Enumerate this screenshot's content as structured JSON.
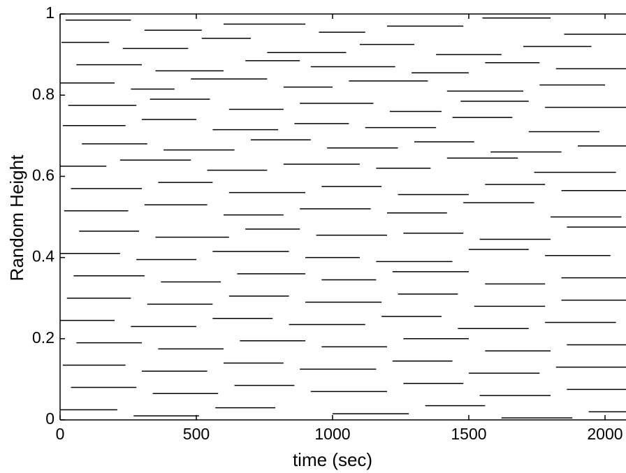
{
  "chart_data": {
    "type": "segments",
    "x_label": "time (sec)",
    "y_label": "Random Height",
    "xlim": [
      0,
      2077
    ],
    "ylim": [
      0,
      1
    ],
    "xticks": [
      0,
      500,
      1000,
      1500,
      2000
    ],
    "yticks": [
      0,
      0.2,
      0.4,
      0.6,
      0.8,
      1
    ],
    "color": "#000000",
    "segments": [
      [
        20,
        260,
        0.985
      ],
      [
        310,
        520,
        0.96
      ],
      [
        600,
        900,
        0.975
      ],
      [
        950,
        1120,
        0.955
      ],
      [
        1200,
        1480,
        0.97
      ],
      [
        1550,
        1800,
        0.99
      ],
      [
        1850,
        2077,
        0.95
      ],
      [
        5,
        180,
        0.93
      ],
      [
        230,
        470,
        0.915
      ],
      [
        520,
        700,
        0.94
      ],
      [
        760,
        1050,
        0.905
      ],
      [
        1100,
        1300,
        0.925
      ],
      [
        1380,
        1620,
        0.9
      ],
      [
        1700,
        1950,
        0.92
      ],
      [
        60,
        300,
        0.875
      ],
      [
        350,
        600,
        0.86
      ],
      [
        680,
        880,
        0.885
      ],
      [
        920,
        1230,
        0.87
      ],
      [
        1290,
        1500,
        0.855
      ],
      [
        1560,
        1760,
        0.88
      ],
      [
        1820,
        2077,
        0.865
      ],
      [
        0,
        200,
        0.83
      ],
      [
        260,
        420,
        0.815
      ],
      [
        480,
        760,
        0.84
      ],
      [
        820,
        1000,
        0.82
      ],
      [
        1060,
        1350,
        0.835
      ],
      [
        1420,
        1700,
        0.81
      ],
      [
        1760,
        2000,
        0.825
      ],
      [
        30,
        280,
        0.775
      ],
      [
        330,
        550,
        0.79
      ],
      [
        620,
        820,
        0.765
      ],
      [
        880,
        1150,
        0.78
      ],
      [
        1210,
        1400,
        0.76
      ],
      [
        1470,
        1720,
        0.785
      ],
      [
        1780,
        2077,
        0.77
      ],
      [
        10,
        240,
        0.725
      ],
      [
        300,
        500,
        0.74
      ],
      [
        560,
        800,
        0.715
      ],
      [
        860,
        1060,
        0.73
      ],
      [
        1120,
        1380,
        0.72
      ],
      [
        1440,
        1660,
        0.745
      ],
      [
        1720,
        1980,
        0.71
      ],
      [
        80,
        320,
        0.68
      ],
      [
        380,
        640,
        0.665
      ],
      [
        700,
        920,
        0.69
      ],
      [
        980,
        1240,
        0.67
      ],
      [
        1300,
        1520,
        0.685
      ],
      [
        1580,
        1840,
        0.66
      ],
      [
        1900,
        2077,
        0.675
      ],
      [
        0,
        170,
        0.625
      ],
      [
        220,
        480,
        0.64
      ],
      [
        540,
        760,
        0.615
      ],
      [
        820,
        1100,
        0.63
      ],
      [
        1160,
        1360,
        0.62
      ],
      [
        1420,
        1680,
        0.645
      ],
      [
        1740,
        2040,
        0.61
      ],
      [
        40,
        300,
        0.57
      ],
      [
        360,
        560,
        0.585
      ],
      [
        620,
        900,
        0.56
      ],
      [
        960,
        1180,
        0.575
      ],
      [
        1240,
        1500,
        0.555
      ],
      [
        1560,
        1780,
        0.58
      ],
      [
        1840,
        2077,
        0.565
      ],
      [
        15,
        250,
        0.515
      ],
      [
        310,
        540,
        0.53
      ],
      [
        600,
        820,
        0.505
      ],
      [
        880,
        1140,
        0.52
      ],
      [
        1200,
        1420,
        0.51
      ],
      [
        1480,
        1740,
        0.535
      ],
      [
        1800,
        2060,
        0.5
      ],
      [
        70,
        290,
        0.465
      ],
      [
        350,
        620,
        0.45
      ],
      [
        680,
        880,
        0.47
      ],
      [
        940,
        1200,
        0.455
      ],
      [
        1260,
        1480,
        0.46
      ],
      [
        1540,
        1800,
        0.445
      ],
      [
        1860,
        2077,
        0.475
      ],
      [
        0,
        220,
        0.41
      ],
      [
        280,
        500,
        0.395
      ],
      [
        560,
        840,
        0.415
      ],
      [
        900,
        1100,
        0.4
      ],
      [
        1160,
        1440,
        0.39
      ],
      [
        1500,
        1720,
        0.42
      ],
      [
        1780,
        2020,
        0.405
      ],
      [
        50,
        310,
        0.355
      ],
      [
        370,
        590,
        0.34
      ],
      [
        650,
        900,
        0.36
      ],
      [
        960,
        1160,
        0.345
      ],
      [
        1220,
        1500,
        0.365
      ],
      [
        1560,
        1780,
        0.335
      ],
      [
        1840,
        2077,
        0.35
      ],
      [
        25,
        260,
        0.3
      ],
      [
        320,
        560,
        0.285
      ],
      [
        620,
        840,
        0.305
      ],
      [
        900,
        1180,
        0.29
      ],
      [
        1240,
        1460,
        0.31
      ],
      [
        1520,
        1780,
        0.28
      ],
      [
        1840,
        2077,
        0.295
      ],
      [
        0,
        200,
        0.245
      ],
      [
        260,
        500,
        0.23
      ],
      [
        560,
        780,
        0.25
      ],
      [
        840,
        1120,
        0.235
      ],
      [
        1180,
        1400,
        0.255
      ],
      [
        1460,
        1720,
        0.225
      ],
      [
        1780,
        2040,
        0.24
      ],
      [
        60,
        300,
        0.19
      ],
      [
        360,
        600,
        0.175
      ],
      [
        660,
        900,
        0.195
      ],
      [
        960,
        1200,
        0.18
      ],
      [
        1260,
        1500,
        0.2
      ],
      [
        1560,
        1800,
        0.17
      ],
      [
        1860,
        2077,
        0.185
      ],
      [
        10,
        240,
        0.135
      ],
      [
        300,
        540,
        0.12
      ],
      [
        600,
        820,
        0.14
      ],
      [
        880,
        1160,
        0.125
      ],
      [
        1220,
        1440,
        0.145
      ],
      [
        1500,
        1760,
        0.115
      ],
      [
        1820,
        2077,
        0.13
      ],
      [
        40,
        280,
        0.08
      ],
      [
        340,
        580,
        0.065
      ],
      [
        640,
        860,
        0.085
      ],
      [
        920,
        1200,
        0.07
      ],
      [
        1260,
        1480,
        0.09
      ],
      [
        1540,
        1800,
        0.06
      ],
      [
        1860,
        2077,
        0.075
      ],
      [
        0,
        210,
        0.025
      ],
      [
        270,
        510,
        0.01
      ],
      [
        570,
        790,
        0.03
      ],
      [
        1000,
        1280,
        0.015
      ],
      [
        1340,
        1560,
        0.035
      ],
      [
        1620,
        1880,
        0.005
      ],
      [
        1940,
        2077,
        0.02
      ]
    ]
  }
}
